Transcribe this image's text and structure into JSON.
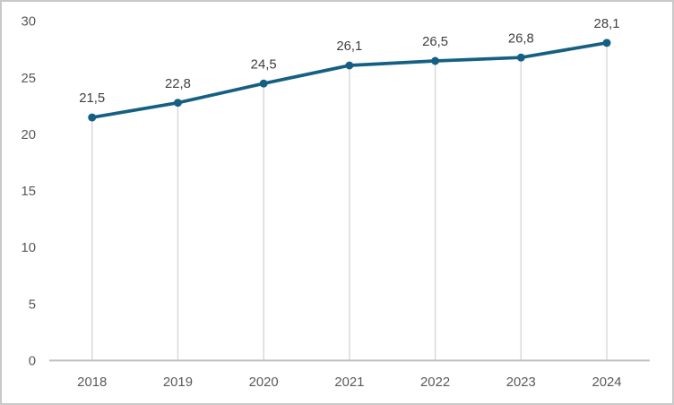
{
  "page": {
    "background_color": "#ffffff",
    "frame_border_color": "#c9c9c9"
  },
  "chart_data": {
    "type": "line",
    "categories": [
      "2018",
      "2019",
      "2020",
      "2021",
      "2022",
      "2023",
      "2024"
    ],
    "values": [
      21.5,
      22.8,
      24.5,
      26.1,
      26.5,
      26.8,
      28.1
    ],
    "value_labels": [
      "21,5",
      "22,8",
      "24,5",
      "26,1",
      "26,5",
      "26,8",
      "28,1"
    ],
    "ylim": [
      0,
      30
    ],
    "y_ticks": [
      0,
      5,
      10,
      15,
      20,
      25,
      30
    ],
    "grid": "vertical drop lines from each data point to x-axis only",
    "legend_position": "none",
    "marker": "circle",
    "colors": {
      "line": "#156082",
      "marker": "#156082",
      "drop_line": "#d9d9d9",
      "axis_line": "#bfbfbf",
      "tick_label": "#595959",
      "data_label": "#404040"
    }
  }
}
